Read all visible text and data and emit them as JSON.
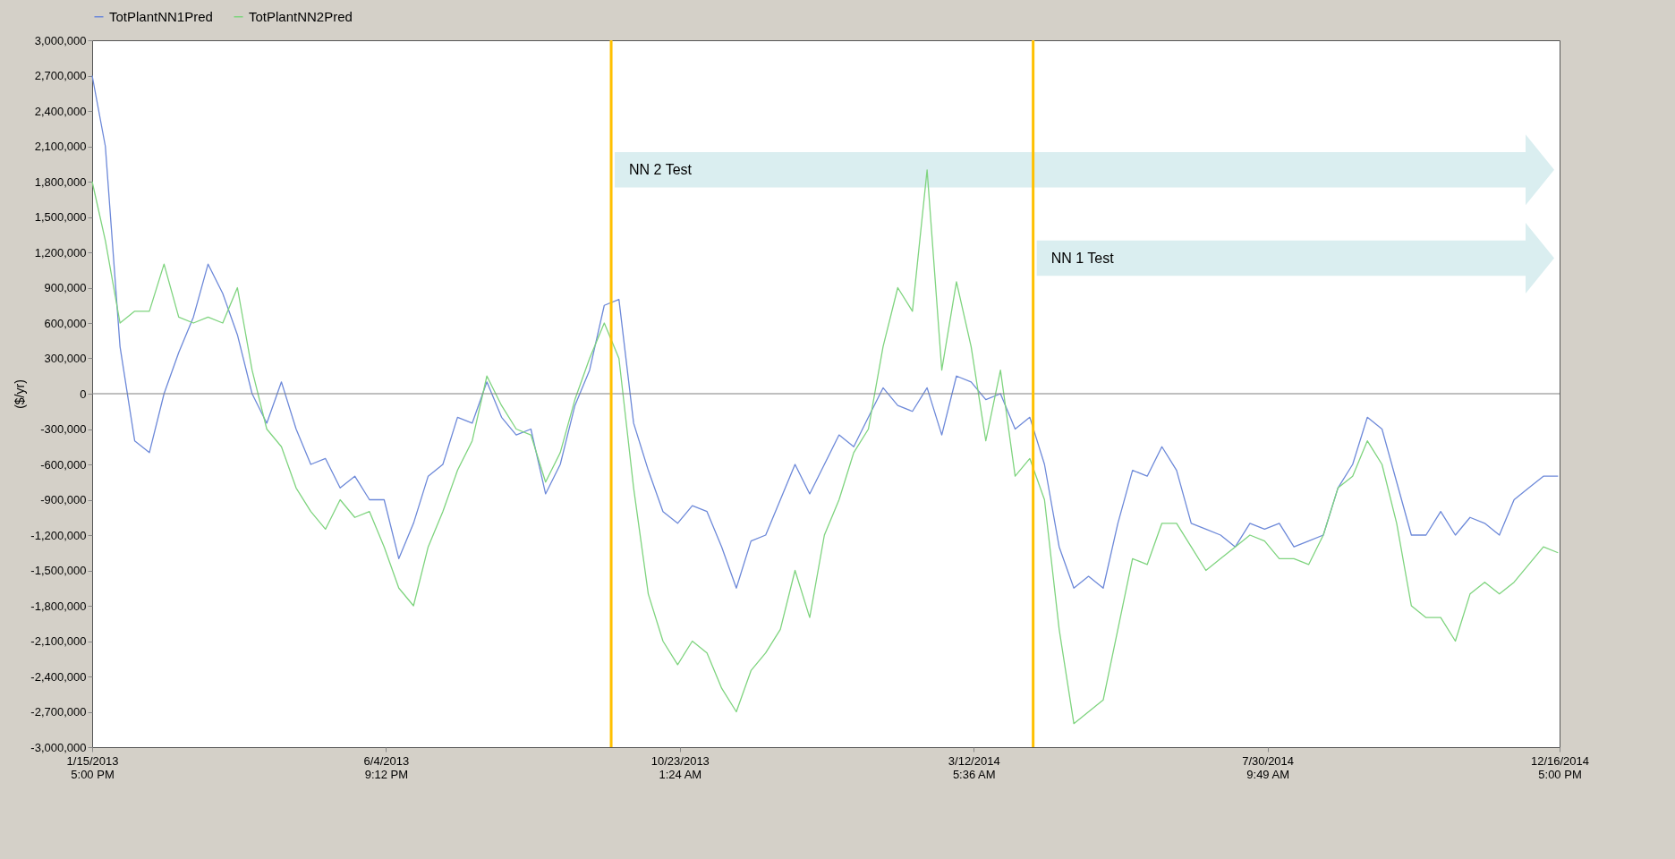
{
  "chart_data": {
    "type": "line",
    "ylabel": "($/yr)",
    "x": [
      "2013-01-15T17:00",
      "2013-01-22",
      "2013-01-29",
      "2013-02-05",
      "2013-02-12",
      "2013-02-19",
      "2013-02-26",
      "2013-03-05",
      "2013-03-12",
      "2013-03-19",
      "2013-03-26",
      "2013-04-02",
      "2013-04-09",
      "2013-04-16",
      "2013-04-23",
      "2013-04-30",
      "2013-05-07",
      "2013-05-14",
      "2013-05-21",
      "2013-05-28",
      "2013-06-04",
      "2013-06-11",
      "2013-06-18",
      "2013-06-25",
      "2013-07-02",
      "2013-07-09",
      "2013-07-16",
      "2013-07-23",
      "2013-07-30",
      "2013-08-06",
      "2013-08-13",
      "2013-08-20",
      "2013-08-27",
      "2013-09-03",
      "2013-09-10",
      "2013-09-17",
      "2013-09-24",
      "2013-10-01",
      "2013-10-08",
      "2013-10-15",
      "2013-10-22",
      "2013-10-29",
      "2013-11-05",
      "2013-11-12",
      "2013-11-19",
      "2013-11-26",
      "2013-12-03",
      "2013-12-10",
      "2013-12-17",
      "2013-12-24",
      "2013-12-31",
      "2014-01-07",
      "2014-01-14",
      "2014-01-21",
      "2014-01-28",
      "2014-02-04",
      "2014-02-11",
      "2014-02-18",
      "2014-02-25",
      "2014-03-04",
      "2014-03-11",
      "2014-03-18",
      "2014-03-25",
      "2014-04-01",
      "2014-04-08",
      "2014-04-15",
      "2014-04-22",
      "2014-04-29",
      "2014-05-06",
      "2014-05-13",
      "2014-05-20",
      "2014-05-27",
      "2014-06-03",
      "2014-06-10",
      "2014-06-17",
      "2014-06-24",
      "2014-07-01",
      "2014-07-08",
      "2014-07-15",
      "2014-07-22",
      "2014-07-29",
      "2014-08-05",
      "2014-08-12",
      "2014-08-19",
      "2014-08-26",
      "2014-09-02",
      "2014-09-09",
      "2014-09-16",
      "2014-09-23",
      "2014-09-30",
      "2014-10-07",
      "2014-10-14",
      "2014-10-21",
      "2014-10-28",
      "2014-11-04",
      "2014-11-11",
      "2014-11-18",
      "2014-11-25",
      "2014-12-02",
      "2014-12-09",
      "2014-12-16"
    ],
    "series": [
      {
        "name": "TotPlantNN1Pred",
        "color": "#6d89d9",
        "values": [
          2700000,
          2100000,
          400000,
          -400000,
          -500000,
          0,
          350000,
          650000,
          1100000,
          850000,
          500000,
          0,
          -250000,
          100000,
          -300000,
          -600000,
          -550000,
          -800000,
          -700000,
          -900000,
          -900000,
          -1400000,
          -1100000,
          -700000,
          -600000,
          -200000,
          -250000,
          100000,
          -200000,
          -350000,
          -300000,
          -850000,
          -600000,
          -100000,
          200000,
          750000,
          800000,
          -250000,
          -650000,
          -1000000,
          -1100000,
          -950000,
          -1000000,
          -1300000,
          -1650000,
          -1250000,
          -1200000,
          -900000,
          -600000,
          -850000,
          -600000,
          -350000,
          -450000,
          -200000,
          50000,
          -100000,
          -150000,
          50000,
          -350000,
          150000,
          100000,
          -50000,
          0,
          -300000,
          -200000,
          -600000,
          -1300000,
          -1650000,
          -1550000,
          -1650000,
          -1100000,
          -650000,
          -700000,
          -450000,
          -650000,
          -1100000,
          -1150000,
          -1200000,
          -1300000,
          -1100000,
          -1150000,
          -1100000,
          -1300000,
          -1250000,
          -1200000,
          -800000,
          -600000,
          -200000,
          -300000,
          -750000,
          -1200000,
          -1200000,
          -1000000,
          -1200000,
          -1050000,
          -1100000,
          -1200000,
          -900000,
          -800000,
          -700000,
          -700000
        ]
      },
      {
        "name": "TotPlantNN2Pred",
        "color": "#7fd47f",
        "values": [
          1800000,
          1300000,
          600000,
          700000,
          700000,
          1100000,
          650000,
          600000,
          650000,
          600000,
          900000,
          200000,
          -300000,
          -450000,
          -800000,
          -1000000,
          -1150000,
          -900000,
          -1050000,
          -1000000,
          -1300000,
          -1650000,
          -1800000,
          -1300000,
          -1000000,
          -650000,
          -400000,
          150000,
          -100000,
          -300000,
          -350000,
          -750000,
          -500000,
          -50000,
          300000,
          600000,
          300000,
          -800000,
          -1700000,
          -2100000,
          -2300000,
          -2100000,
          -2200000,
          -2500000,
          -2700000,
          -2350000,
          -2200000,
          -2000000,
          -1500000,
          -1900000,
          -1200000,
          -900000,
          -500000,
          -300000,
          400000,
          900000,
          700000,
          1900000,
          200000,
          950000,
          400000,
          -400000,
          200000,
          -700000,
          -550000,
          -900000,
          -2000000,
          -2800000,
          -2700000,
          -2600000,
          -2000000,
          -1400000,
          -1450000,
          -1100000,
          -1100000,
          -1300000,
          -1500000,
          -1400000,
          -1300000,
          -1200000,
          -1250000,
          -1400000,
          -1400000,
          -1450000,
          -1200000,
          -800000,
          -700000,
          -400000,
          -600000,
          -1100000,
          -1800000,
          -1900000,
          -1900000,
          -2100000,
          -1700000,
          -1600000,
          -1700000,
          -1600000,
          -1450000,
          -1300000,
          -1350000
        ]
      }
    ],
    "xlim": [
      "2013-01-15T17:00",
      "2014-12-16T17:00"
    ],
    "xticks": [
      {
        "value": "2013-01-15T17:00",
        "label": "1/15/2013\n5:00 PM"
      },
      {
        "value": "2013-06-04T21:12",
        "label": "6/4/2013\n9:12 PM"
      },
      {
        "value": "2013-10-23T01:24",
        "label": "10/23/2013\n1:24 AM"
      },
      {
        "value": "2014-03-12T05:36",
        "label": "3/12/2014\n5:36 AM"
      },
      {
        "value": "2014-07-30T09:49",
        "label": "7/30/2014\n9:49 AM"
      },
      {
        "value": "2014-12-16T17:00",
        "label": "12/16/2014\n5:00 PM"
      }
    ],
    "ylim": [
      -3000000,
      3000000
    ],
    "yticks": [
      {
        "value": -3000000,
        "label": "-3,000,000"
      },
      {
        "value": -2700000,
        "label": "-2,700,000"
      },
      {
        "value": -2400000,
        "label": "-2,400,000"
      },
      {
        "value": -2100000,
        "label": "-2,100,000"
      },
      {
        "value": -1800000,
        "label": "-1,800,000"
      },
      {
        "value": -1500000,
        "label": "-1,500,000"
      },
      {
        "value": -1200000,
        "label": "-1,200,000"
      },
      {
        "value": -900000,
        "label": "-900,000"
      },
      {
        "value": -600000,
        "label": "-600,000"
      },
      {
        "value": -300000,
        "label": "-300,000"
      },
      0,
      {
        "value": 300000,
        "label": "300,000"
      },
      {
        "value": 600000,
        "label": "600,000"
      },
      {
        "value": 900000,
        "label": "900,000"
      },
      {
        "value": 1200000,
        "label": "1,200,000"
      },
      {
        "value": 1500000,
        "label": "1,500,000"
      },
      {
        "value": 1800000,
        "label": "1,800,000"
      },
      {
        "value": 2100000,
        "label": "2,100,000"
      },
      {
        "value": 2400000,
        "label": "2,400,000"
      },
      {
        "value": 2700000,
        "label": "2,700,000"
      },
      {
        "value": 3000000,
        "label": "3,000,000"
      }
    ],
    "ref_lines": [
      {
        "axis": "y",
        "value": 0,
        "color": "#808080"
      },
      {
        "axis": "x",
        "value": "2013-09-20T07:00",
        "color": "#ffc000"
      },
      {
        "axis": "x",
        "value": "2014-04-09T14:00",
        "color": "#ffc000"
      }
    ],
    "annotations": [
      {
        "text": "NN 2 Test",
        "x": "2013-09-20T07:00",
        "y": 1900000
      },
      {
        "text": "NN 1 Test",
        "x": "2014-04-09T14:00",
        "y": 1150000
      }
    ],
    "legend": "top"
  }
}
